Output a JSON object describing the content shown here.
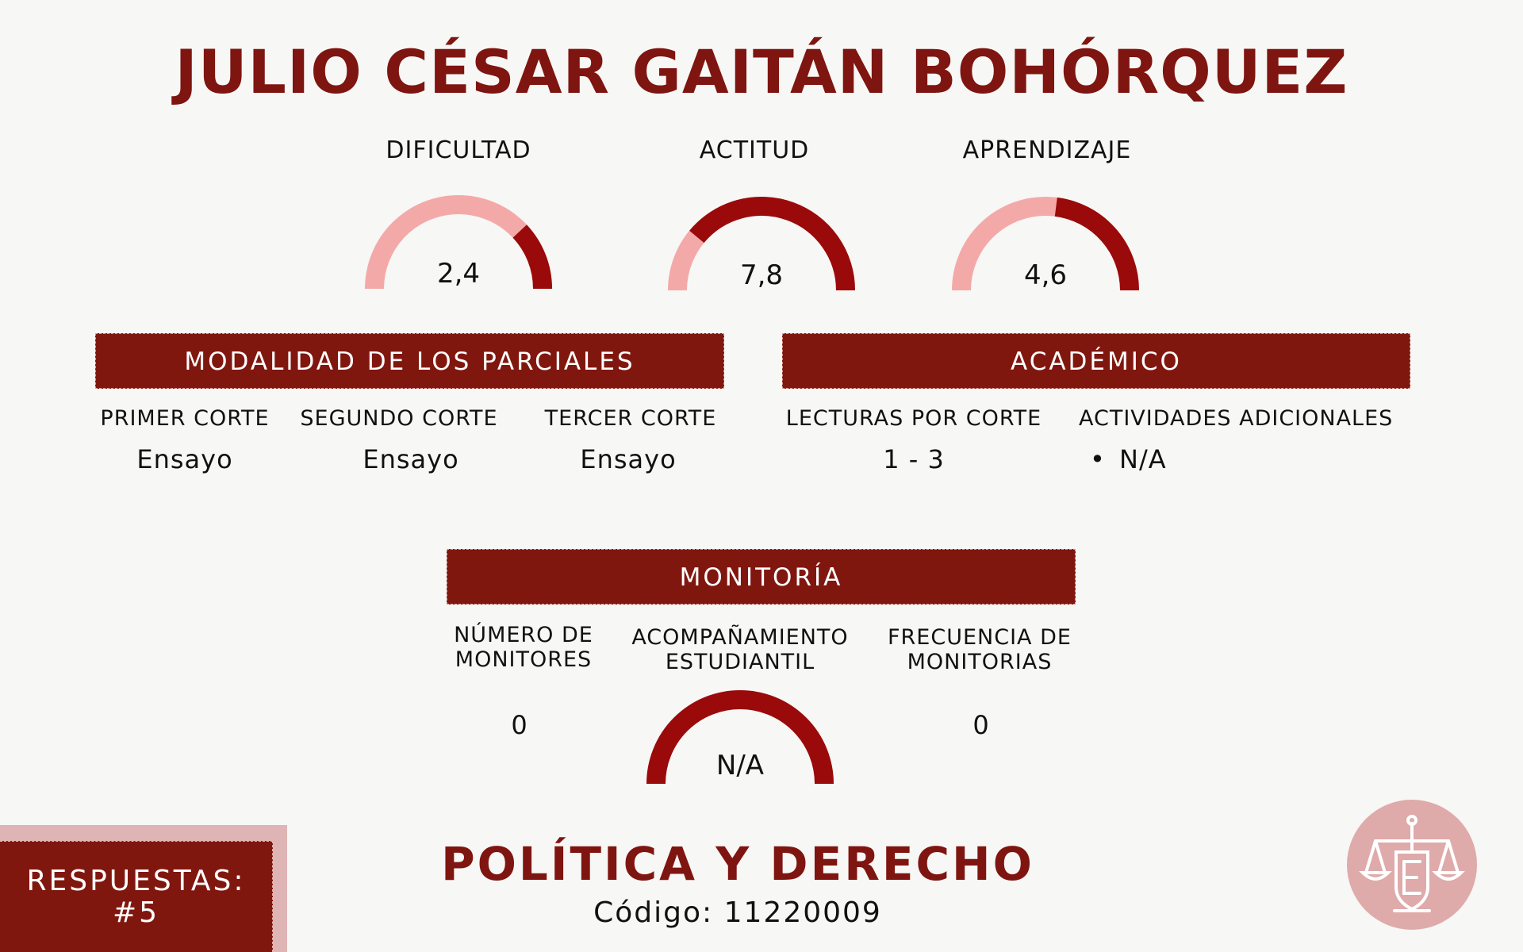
{
  "professor_name": "JULIO CÉSAR GAITÁN BOHÓRQUEZ",
  "metrics": [
    {
      "label": "DIFICULTAD",
      "value": "2,4",
      "score": 2.4,
      "fill_from": "right"
    },
    {
      "label": "ACTITUD",
      "value": "7,8",
      "score": 7.8,
      "fill_from": "left"
    },
    {
      "label": "APRENDIZAJE",
      "value": "4,6",
      "score": 4.6,
      "fill_from": "right"
    }
  ],
  "parciales": {
    "title": "MODALIDAD DE LOS PARCIALES",
    "columns": [
      {
        "head": "PRIMER CORTE",
        "value": "Ensayo"
      },
      {
        "head": "SEGUNDO CORTE",
        "value": "Ensayo"
      },
      {
        "head": "TERCER CORTE",
        "value": "Ensayo"
      }
    ]
  },
  "academico": {
    "title": "ACADÉMICO",
    "lecturas_head": "LECTURAS POR CORTE",
    "lecturas_value": "1 - 3",
    "actividades_head": "ACTIVIDADES ADICIONALES",
    "actividades_bullet": "•",
    "actividades_value": "N/A"
  },
  "monitoria": {
    "title": "MONITORÍA",
    "numero_head_1": "NÚMERO DE",
    "numero_head_2": "MONITORES",
    "numero_value": "0",
    "acomp_head_1": "ACOMPAÑAMIENTO",
    "acomp_head_2": "ESTUDIANTIL",
    "acomp_value": "N/A",
    "frecuencia_head_1": "FRECUENCIA DE",
    "frecuencia_head_2": "MONITORIAS",
    "frecuencia_value": "0"
  },
  "subject": "POLÍTICA Y DERECHO",
  "code": "Código: 11220009",
  "respuestas_line1": "RESPUESTAS:",
  "respuestas_line2": "#5",
  "colors": {
    "brand_dark": "#80170f",
    "gauge_fill": "#9a0a0a",
    "gauge_track": "#f4a9a9",
    "background": "#f7f7f5",
    "logo": "#dfaaaa"
  },
  "logo_icon": "scales-of-justice-icon"
}
